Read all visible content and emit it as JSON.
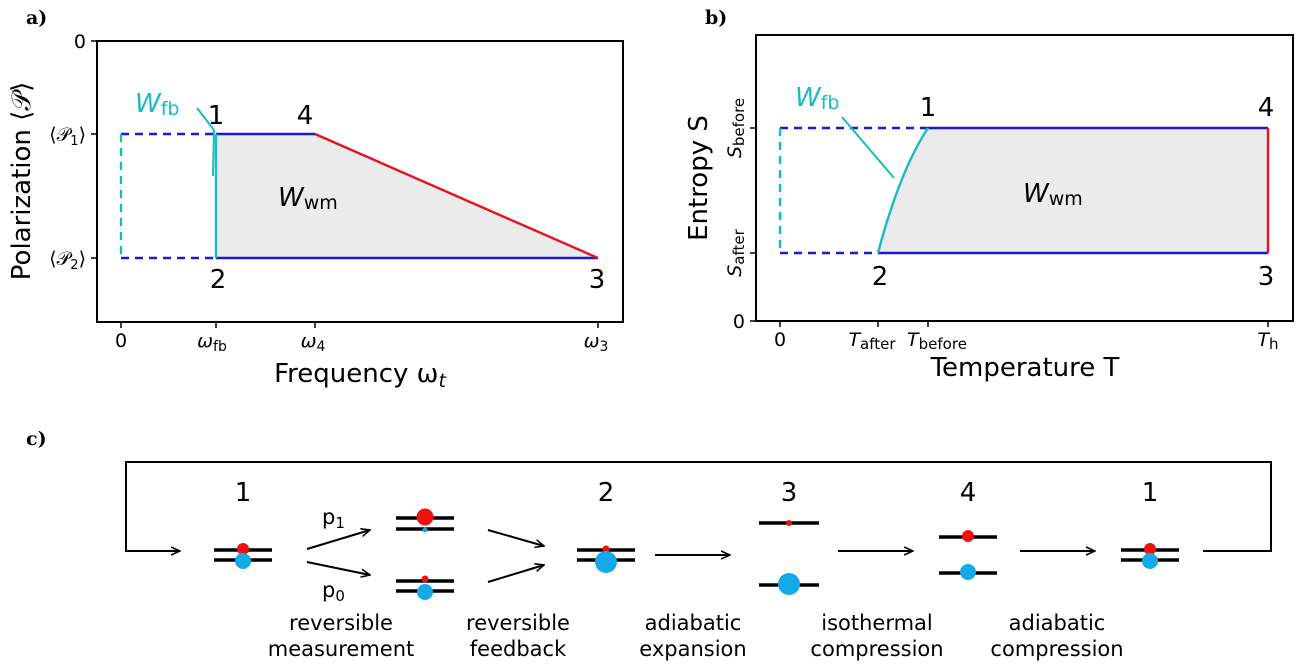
{
  "colors": {
    "isochore_blue": "#1a1ad6",
    "adiabat_red": "#e8121e",
    "feedback_cyan": "#17bcc0",
    "work_fill": "#ebebeb",
    "ball_red": "#f01010",
    "ball_blue": "#14a9e8"
  },
  "panel_a": {
    "label": "a)",
    "xlabel": "Frequency ω",
    "xlabel_sub": "t",
    "ylabel": "Polarization ⟨𝒫⟩",
    "xticks": [
      {
        "main": "0",
        "sub": ""
      },
      {
        "main": "ω",
        "sub": "fb"
      },
      {
        "main": "ω",
        "sub": "4"
      },
      {
        "main": "ω",
        "sub": "3"
      }
    ],
    "yticks": [
      {
        "main": "0",
        "sub": "",
        "tail": ""
      },
      {
        "main": "⟨𝒫",
        "sub": "1",
        "tail": "⟩"
      },
      {
        "main": "⟨𝒫",
        "sub": "2",
        "tail": "⟩"
      }
    ],
    "states": [
      "1",
      "4",
      "2",
      "3"
    ],
    "work_label": {
      "main": "W",
      "sub": "wm"
    },
    "feedback_label": {
      "main": "W",
      "sub": "fb"
    }
  },
  "panel_b": {
    "label": "b)",
    "xlabel": "Temperature T",
    "ylabel": "Entropy S",
    "xticks": [
      {
        "main": "0",
        "sub": ""
      },
      {
        "main": "T",
        "sub": "after"
      },
      {
        "main": "T",
        "sub": "before"
      },
      {
        "main": "T",
        "sub": "h"
      }
    ],
    "yticks": [
      {
        "main": "0",
        "sub": ""
      },
      {
        "main": "S",
        "sub": "before"
      },
      {
        "main": "S",
        "sub": "after"
      }
    ],
    "states": [
      "1",
      "4",
      "2",
      "3"
    ],
    "work_label": {
      "main": "W",
      "sub": "wm"
    },
    "feedback_label": {
      "main": "W",
      "sub": "fb"
    }
  },
  "panel_c": {
    "label": "c)",
    "stage_numbers": [
      "1",
      "2",
      "3",
      "4",
      "1"
    ],
    "branches": [
      {
        "main": "p",
        "sub": "1"
      },
      {
        "main": "p",
        "sub": "0"
      }
    ],
    "steps": [
      {
        "line1": "reversible",
        "line2": "measurement"
      },
      {
        "line1": "reversible",
        "line2": "feedback"
      },
      {
        "line1": "adiabatic",
        "line2": "expansion"
      },
      {
        "line1": "isothermal",
        "line2": "compression"
      },
      {
        "line1": "adiabatic",
        "line2": "compression"
      }
    ]
  }
}
